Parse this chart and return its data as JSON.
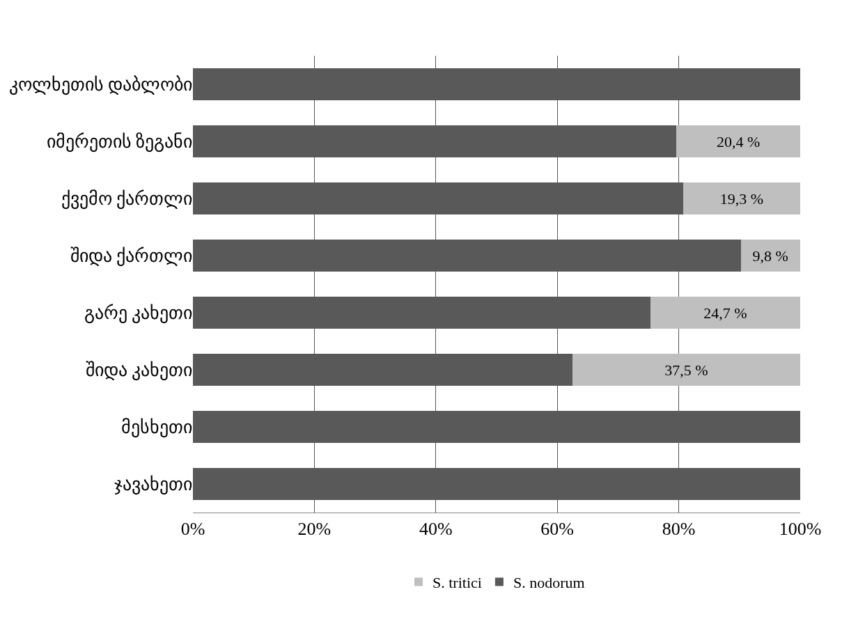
{
  "chart_data": {
    "type": "bar",
    "orientation": "horizontal",
    "stacked": true,
    "categories": [
      "კოლხეთის დაბლობი",
      "იმერეთის ზეგანი",
      "ქვემო ქართლი",
      "შიდა ქართლი",
      "გარე კახეთი",
      "შიდა კახეთი",
      "მესხეთი",
      "ჯავახეთი"
    ],
    "series": [
      {
        "name": "S. nodorum",
        "color": "#595959",
        "values": [
          100,
          79.6,
          80.7,
          90.2,
          75.3,
          62.5,
          100,
          100
        ]
      },
      {
        "name": "S. tritici",
        "color": "#bfbfbf",
        "values": [
          0,
          20.4,
          19.3,
          9.8,
          24.7,
          37.5,
          0,
          0
        ],
        "value_labels": [
          null,
          "20,4 %",
          "19,3 %",
          "9,8 %",
          "24,7 %",
          "37,5 %",
          null,
          null
        ]
      }
    ],
    "xlim": [
      0,
      100
    ],
    "xticks": [
      {
        "value": 0,
        "label": "0%"
      },
      {
        "value": 20,
        "label": "20%"
      },
      {
        "value": 40,
        "label": "40%"
      },
      {
        "value": 60,
        "label": "60%"
      },
      {
        "value": 80,
        "label": "80%"
      },
      {
        "value": 100,
        "label": "100%"
      }
    ],
    "grid": "x",
    "legend": "bottom"
  }
}
